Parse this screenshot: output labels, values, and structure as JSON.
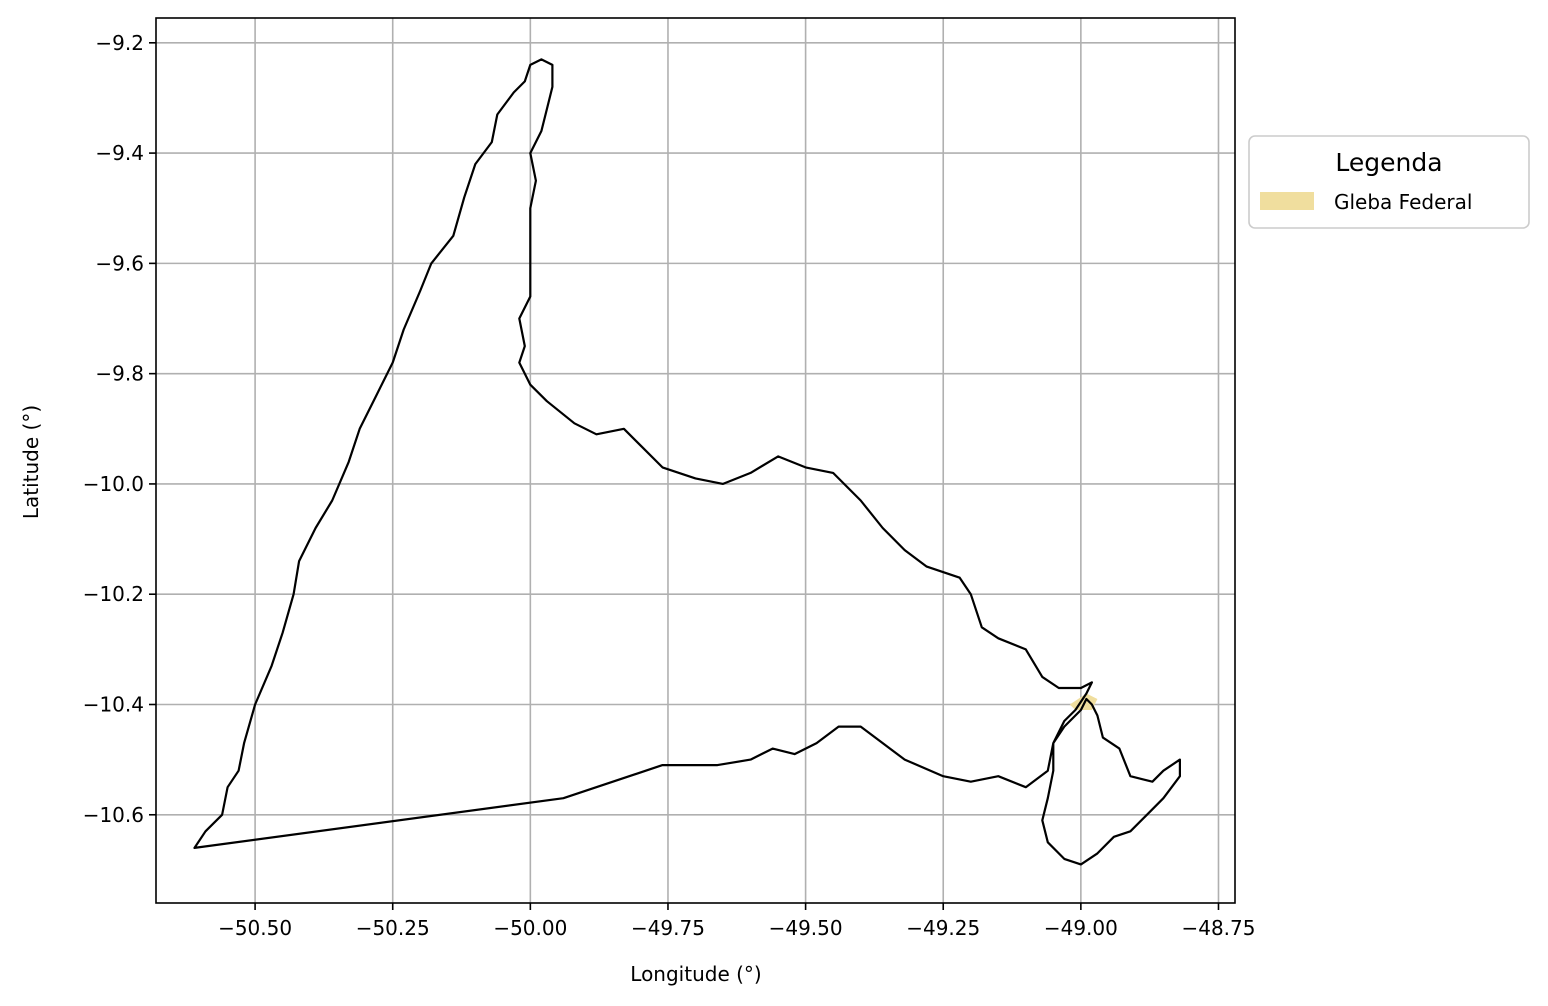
{
  "chart_data": {
    "type": "map",
    "title": "",
    "xlabel": "Longitude (°)",
    "ylabel": "Latitude (°)",
    "xlim": [
      -50.68,
      -48.72
    ],
    "ylim": [
      -10.76,
      -9.155
    ],
    "grid": true,
    "x_ticks": [
      -50.5,
      -50.25,
      -50.0,
      -49.75,
      -49.5,
      -49.25,
      -49.0,
      -48.75
    ],
    "x_tick_labels": [
      "−50.50",
      "−50.25",
      "−50.00",
      "−49.75",
      "−49.50",
      "−49.25",
      "−49.00",
      "−48.75"
    ],
    "y_ticks": [
      -9.2,
      -9.4,
      -9.6,
      -9.8,
      -10.0,
      -10.2,
      -10.4,
      -10.6
    ],
    "y_tick_labels": [
      "−9.2",
      "−9.4",
      "−9.6",
      "−9.8",
      "−10.0",
      "−10.2",
      "−10.4",
      "−10.6"
    ],
    "boundary_color": "#000000",
    "boundary": [
      [
        -50.61,
        -10.66
      ],
      [
        -49.94,
        -10.57
      ],
      [
        -49.76,
        -10.51
      ],
      [
        -49.72,
        -10.51
      ],
      [
        -49.66,
        -10.51
      ],
      [
        -49.6,
        -10.5
      ],
      [
        -49.56,
        -10.48
      ],
      [
        -49.52,
        -10.49
      ],
      [
        -49.48,
        -10.47
      ],
      [
        -49.44,
        -10.44
      ],
      [
        -49.4,
        -10.44
      ],
      [
        -49.36,
        -10.47
      ],
      [
        -49.32,
        -10.5
      ],
      [
        -49.25,
        -10.53
      ],
      [
        -49.2,
        -10.54
      ],
      [
        -49.15,
        -10.53
      ],
      [
        -49.1,
        -10.55
      ],
      [
        -49.06,
        -10.52
      ],
      [
        -49.05,
        -10.47
      ],
      [
        -49.03,
        -10.44
      ],
      [
        -49.0,
        -10.41
      ],
      [
        -48.99,
        -10.39
      ],
      [
        -48.98,
        -10.4
      ],
      [
        -48.97,
        -10.42
      ],
      [
        -48.96,
        -10.46
      ],
      [
        -48.93,
        -10.48
      ],
      [
        -48.91,
        -10.53
      ],
      [
        -48.87,
        -10.54
      ],
      [
        -48.85,
        -10.52
      ],
      [
        -48.82,
        -10.5
      ],
      [
        -48.82,
        -10.53
      ],
      [
        -48.85,
        -10.57
      ],
      [
        -48.88,
        -10.6
      ],
      [
        -48.91,
        -10.63
      ],
      [
        -48.94,
        -10.64
      ],
      [
        -48.97,
        -10.67
      ],
      [
        -49.0,
        -10.69
      ],
      [
        -49.03,
        -10.68
      ],
      [
        -49.06,
        -10.65
      ],
      [
        -49.07,
        -10.61
      ],
      [
        -49.06,
        -10.57
      ],
      [
        -49.05,
        -10.52
      ],
      [
        -49.05,
        -10.47
      ],
      [
        -49.03,
        -10.43
      ],
      [
        -49.01,
        -10.41
      ],
      [
        -48.99,
        -10.38
      ],
      [
        -48.98,
        -10.36
      ],
      [
        -49.0,
        -10.37
      ],
      [
        -49.04,
        -10.37
      ],
      [
        -49.07,
        -10.35
      ],
      [
        -49.1,
        -10.3
      ],
      [
        -49.15,
        -10.28
      ],
      [
        -49.18,
        -10.26
      ],
      [
        -49.2,
        -10.2
      ],
      [
        -49.22,
        -10.17
      ],
      [
        -49.28,
        -10.15
      ],
      [
        -49.32,
        -10.12
      ],
      [
        -49.36,
        -10.08
      ],
      [
        -49.4,
        -10.03
      ],
      [
        -49.45,
        -9.98
      ],
      [
        -49.5,
        -9.97
      ],
      [
        -49.55,
        -9.95
      ],
      [
        -49.6,
        -9.98
      ],
      [
        -49.65,
        -10.0
      ],
      [
        -49.7,
        -9.99
      ],
      [
        -49.76,
        -9.97
      ],
      [
        -49.8,
        -9.93
      ],
      [
        -49.83,
        -9.9
      ],
      [
        -49.88,
        -9.91
      ],
      [
        -49.92,
        -9.89
      ],
      [
        -49.97,
        -9.85
      ],
      [
        -50.0,
        -9.82
      ],
      [
        -50.02,
        -9.78
      ],
      [
        -50.01,
        -9.75
      ],
      [
        -50.02,
        -9.7
      ],
      [
        -50.0,
        -9.66
      ],
      [
        -50.0,
        -9.6
      ],
      [
        -50.0,
        -9.55
      ],
      [
        -50.0,
        -9.5
      ],
      [
        -49.99,
        -9.45
      ],
      [
        -50.0,
        -9.4
      ],
      [
        -49.98,
        -9.36
      ],
      [
        -49.97,
        -9.32
      ],
      [
        -49.96,
        -9.28
      ],
      [
        -49.96,
        -9.24
      ],
      [
        -49.98,
        -9.23
      ],
      [
        -50.0,
        -9.24
      ],
      [
        -50.01,
        -9.27
      ],
      [
        -50.03,
        -9.29
      ],
      [
        -50.06,
        -9.33
      ],
      [
        -50.07,
        -9.38
      ],
      [
        -50.1,
        -9.42
      ],
      [
        -50.12,
        -9.48
      ],
      [
        -50.14,
        -9.55
      ],
      [
        -50.18,
        -9.6
      ],
      [
        -50.2,
        -9.65
      ],
      [
        -50.23,
        -9.72
      ],
      [
        -50.25,
        -9.78
      ],
      [
        -50.28,
        -9.84
      ],
      [
        -50.31,
        -9.9
      ],
      [
        -50.33,
        -9.96
      ],
      [
        -50.36,
        -10.03
      ],
      [
        -50.39,
        -10.08
      ],
      [
        -50.42,
        -10.14
      ],
      [
        -50.43,
        -10.2
      ],
      [
        -50.45,
        -10.27
      ],
      [
        -50.47,
        -10.33
      ],
      [
        -50.5,
        -10.4
      ],
      [
        -50.52,
        -10.47
      ],
      [
        -50.53,
        -10.52
      ],
      [
        -50.55,
        -10.55
      ],
      [
        -50.56,
        -10.6
      ],
      [
        -50.59,
        -10.63
      ],
      [
        -50.61,
        -10.66
      ]
    ],
    "legend": {
      "title": "Legenda",
      "placement": "outside-upper-right",
      "items": [
        {
          "label": "Gleba Federal",
          "color": "#f0de9e"
        }
      ]
    },
    "features": [
      {
        "label": "Gleba Federal",
        "color": "#f0de9e",
        "polygon": [
          [
            -49.02,
            -10.4
          ],
          [
            -48.99,
            -10.38
          ],
          [
            -48.97,
            -10.39
          ],
          [
            -48.98,
            -10.41
          ],
          [
            -49.01,
            -10.41
          ]
        ]
      }
    ]
  }
}
